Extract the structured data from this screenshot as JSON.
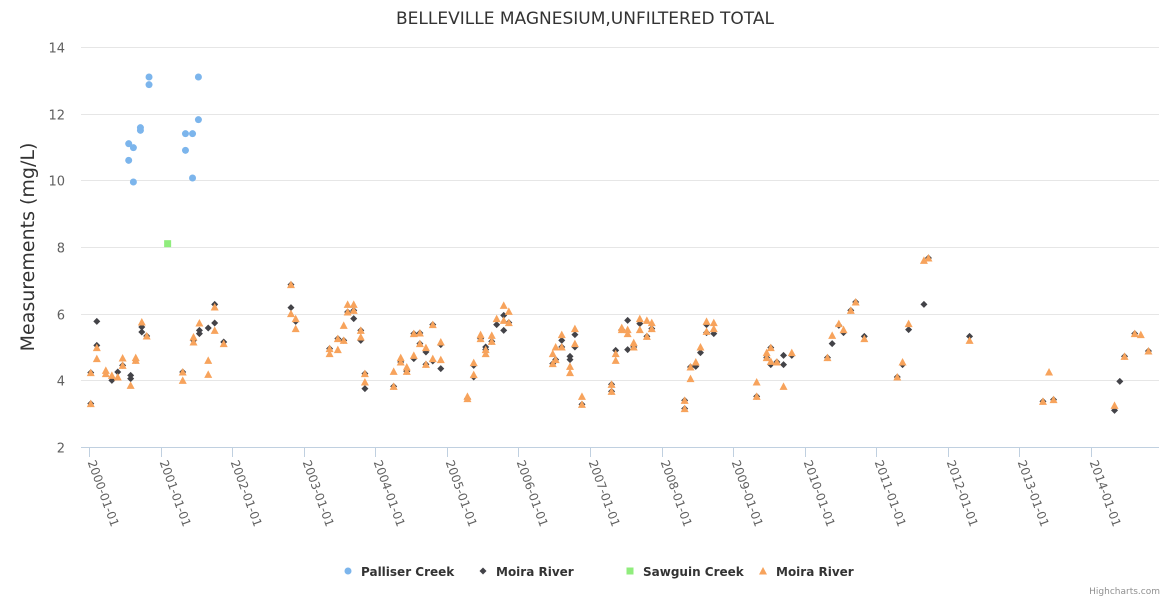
{
  "chart_data": {
    "type": "scatter",
    "title": "BELLEVILLE MAGNESIUM,UNFILTERED TOTAL",
    "xlabel": "",
    "ylabel": "Measurements (mg/L)",
    "ylim": [
      2,
      14
    ],
    "xlim": [
      "1999-11-21",
      "2014-12-13"
    ],
    "y_ticks": [
      "2",
      "4",
      "6",
      "8",
      "10",
      "12",
      "14"
    ],
    "x_ticks": [
      "2000-01-01",
      "2001-01-01",
      "2002-01-01",
      "2003-01-01",
      "2004-01-01",
      "2005-01-01",
      "2006-01-01",
      "2007-01-01",
      "2008-01-01",
      "2009-01-01",
      "2010-01-01",
      "2011-01-01",
      "2012-01-01",
      "2013-01-01",
      "2014-01-01"
    ],
    "grid": true,
    "legend_position": "bottom",
    "credits": "Highcharts.com",
    "series": [
      {
        "name": "Palliser Creek",
        "marker": "circle",
        "color": "#7cb5ec",
        "points": [
          [
            "2000-07-22",
            11.1
          ],
          [
            "2000-07-22",
            10.6
          ],
          [
            "2000-08-15",
            10.98
          ],
          [
            "2000-08-15",
            9.95
          ],
          [
            "2000-09-20",
            11.58
          ],
          [
            "2000-09-20",
            11.5
          ],
          [
            "2000-11-03",
            13.1
          ],
          [
            "2000-11-03",
            12.87
          ],
          [
            "2001-05-08",
            11.4
          ],
          [
            "2001-05-08",
            10.9
          ],
          [
            "2001-06-13",
            11.4
          ],
          [
            "2001-06-13",
            10.07
          ],
          [
            "2001-07-13",
            13.1
          ],
          [
            "2001-07-13",
            11.82
          ]
        ]
      },
      {
        "name": "Moira River",
        "marker": "diamond",
        "color": "#434348",
        "points": [
          [
            "2000-01-10",
            3.3
          ],
          [
            "2000-01-10",
            4.23
          ],
          [
            "2000-02-10",
            5.77
          ],
          [
            "2000-02-10",
            5.05
          ],
          [
            "2000-04-27",
            4.0
          ],
          [
            "2000-05-27",
            4.25
          ],
          [
            "2000-06-21",
            4.45
          ],
          [
            "2000-08-01",
            4.15
          ],
          [
            "2000-08-01",
            4.05
          ],
          [
            "2000-08-27",
            4.6
          ],
          [
            "2000-09-27",
            5.6
          ],
          [
            "2000-09-27",
            5.45
          ],
          [
            "2000-10-22",
            5.33
          ],
          [
            "2001-04-24",
            4.25
          ],
          [
            "2001-06-18",
            5.2
          ],
          [
            "2001-07-18",
            5.5
          ],
          [
            "2001-07-18",
            5.4
          ],
          [
            "2001-09-01",
            5.57
          ],
          [
            "2001-10-04",
            6.28
          ],
          [
            "2001-10-04",
            5.72
          ],
          [
            "2001-11-19",
            5.15
          ],
          [
            "2002-10-28",
            6.87
          ],
          [
            "2002-10-28",
            6.18
          ],
          [
            "2002-11-21",
            5.77
          ],
          [
            "2003-05-13",
            4.95
          ],
          [
            "2003-06-24",
            5.25
          ],
          [
            "2003-07-24",
            5.2
          ],
          [
            "2003-08-13",
            6.05
          ],
          [
            "2003-09-13",
            6.1
          ],
          [
            "2003-09-13",
            5.85
          ],
          [
            "2003-10-19",
            5.5
          ],
          [
            "2003-10-19",
            5.2
          ],
          [
            "2003-11-09",
            4.2
          ],
          [
            "2003-11-09",
            3.75
          ],
          [
            "2004-04-04",
            3.82
          ],
          [
            "2004-05-10",
            4.55
          ],
          [
            "2004-06-10",
            4.27
          ],
          [
            "2004-07-16",
            5.4
          ],
          [
            "2004-07-16",
            4.65
          ],
          [
            "2004-08-16",
            5.42
          ],
          [
            "2004-08-16",
            5.1
          ],
          [
            "2004-09-16",
            4.85
          ],
          [
            "2004-09-16",
            4.48
          ],
          [
            "2004-10-21",
            5.67
          ],
          [
            "2004-10-21",
            4.58
          ],
          [
            "2004-12-01",
            5.07
          ],
          [
            "2004-12-01",
            4.35
          ],
          [
            "2005-04-16",
            3.45
          ],
          [
            "2005-05-18",
            4.45
          ],
          [
            "2005-05-18",
            4.1
          ],
          [
            "2005-06-22",
            5.25
          ],
          [
            "2005-07-18",
            5.0
          ],
          [
            "2005-07-18",
            4.92
          ],
          [
            "2005-08-18",
            5.17
          ],
          [
            "2005-09-12",
            5.67
          ],
          [
            "2005-10-18",
            5.95
          ],
          [
            "2005-10-18",
            5.5
          ],
          [
            "2005-11-13",
            5.73
          ],
          [
            "2006-06-25",
            4.5
          ],
          [
            "2006-07-10",
            4.62
          ],
          [
            "2006-08-10",
            5.2
          ],
          [
            "2006-08-10",
            5.0
          ],
          [
            "2006-09-21",
            4.72
          ],
          [
            "2006-09-21",
            4.62
          ],
          [
            "2006-10-16",
            5.37
          ],
          [
            "2006-10-16",
            5.0
          ],
          [
            "2006-11-21",
            3.28
          ],
          [
            "2007-04-21",
            3.88
          ],
          [
            "2007-04-21",
            3.67
          ],
          [
            "2007-05-12",
            4.9
          ],
          [
            "2007-06-12",
            5.52
          ],
          [
            "2007-07-12",
            5.8
          ],
          [
            "2007-07-12",
            4.92
          ],
          [
            "2007-08-12",
            5.0
          ],
          [
            "2007-09-12",
            5.7
          ],
          [
            "2007-10-18",
            5.32
          ],
          [
            "2007-11-12",
            5.55
          ],
          [
            "2008-04-28",
            3.4
          ],
          [
            "2008-04-28",
            3.15
          ],
          [
            "2008-05-28",
            4.4
          ],
          [
            "2008-06-24",
            4.42
          ],
          [
            "2008-07-18",
            4.83
          ],
          [
            "2008-08-18",
            5.67
          ],
          [
            "2008-08-18",
            5.43
          ],
          [
            "2008-09-24",
            5.4
          ],
          [
            "2009-05-01",
            3.52
          ],
          [
            "2009-06-21",
            4.68
          ],
          [
            "2009-07-12",
            4.98
          ],
          [
            "2009-07-12",
            4.47
          ],
          [
            "2009-08-12",
            4.55
          ],
          [
            "2009-09-15",
            4.75
          ],
          [
            "2009-09-15",
            4.47
          ],
          [
            "2009-10-27",
            4.75
          ],
          [
            "2010-04-27",
            4.68
          ],
          [
            "2010-05-21",
            5.1
          ],
          [
            "2010-06-24",
            5.65
          ],
          [
            "2010-07-18",
            5.43
          ],
          [
            "2010-08-24",
            6.1
          ],
          [
            "2010-09-18",
            6.35
          ],
          [
            "2010-11-01",
            5.32
          ],
          [
            "2011-04-18",
            4.1
          ],
          [
            "2011-05-15",
            4.47
          ],
          [
            "2011-06-15",
            5.52
          ],
          [
            "2011-09-01",
            6.28
          ],
          [
            "2011-09-24",
            7.67
          ],
          [
            "2012-04-21",
            5.32
          ],
          [
            "2013-05-01",
            3.37
          ],
          [
            "2013-06-24",
            3.42
          ],
          [
            "2014-05-01",
            3.1
          ],
          [
            "2014-05-28",
            3.97
          ],
          [
            "2014-06-21",
            4.72
          ],
          [
            "2014-08-12",
            5.4
          ],
          [
            "2014-10-21",
            4.88
          ]
        ]
      },
      {
        "name": "Sawguin Creek",
        "marker": "square",
        "color": "#90ed7d",
        "points": [
          [
            "2001-02-06",
            8.1
          ]
        ]
      },
      {
        "name": "Moira River",
        "marker": "triangle",
        "color": "#f7a35c",
        "points": [
          [
            "2000-01-10",
            3.3
          ],
          [
            "2000-01-10",
            4.23
          ],
          [
            "2000-02-10",
            4.98
          ],
          [
            "2000-02-10",
            4.65
          ],
          [
            "2000-03-27",
            4.3
          ],
          [
            "2000-03-27",
            4.2
          ],
          [
            "2000-04-27",
            4.15
          ],
          [
            "2000-05-27",
            4.1
          ],
          [
            "2000-06-21",
            4.67
          ],
          [
            "2000-06-21",
            4.45
          ],
          [
            "2000-08-01",
            3.85
          ],
          [
            "2000-08-27",
            4.68
          ],
          [
            "2000-08-27",
            4.6
          ],
          [
            "2000-09-27",
            5.75
          ],
          [
            "2000-10-22",
            5.33
          ],
          [
            "2001-04-24",
            4.25
          ],
          [
            "2001-04-24",
            4.0
          ],
          [
            "2001-06-18",
            5.3
          ],
          [
            "2001-06-18",
            5.15
          ],
          [
            "2001-07-18",
            5.72
          ],
          [
            "2001-09-01",
            4.6
          ],
          [
            "2001-09-01",
            4.18
          ],
          [
            "2001-10-04",
            6.2
          ],
          [
            "2001-10-04",
            5.5
          ],
          [
            "2001-11-19",
            5.1
          ],
          [
            "2002-10-28",
            6.87
          ],
          [
            "2002-10-28",
            6.0
          ],
          [
            "2002-11-21",
            5.85
          ],
          [
            "2002-11-21",
            5.55
          ],
          [
            "2003-05-13",
            4.95
          ],
          [
            "2003-05-13",
            4.8
          ],
          [
            "2003-06-24",
            5.25
          ],
          [
            "2003-06-24",
            4.92
          ],
          [
            "2003-07-24",
            5.65
          ],
          [
            "2003-07-24",
            5.2
          ],
          [
            "2003-08-13",
            6.28
          ],
          [
            "2003-08-13",
            6.05
          ],
          [
            "2003-09-13",
            6.28
          ],
          [
            "2003-09-13",
            6.1
          ],
          [
            "2003-10-19",
            5.5
          ],
          [
            "2003-10-19",
            5.3
          ],
          [
            "2003-11-09",
            4.2
          ],
          [
            "2003-11-09",
            3.95
          ],
          [
            "2004-04-04",
            4.27
          ],
          [
            "2004-04-04",
            3.82
          ],
          [
            "2004-05-10",
            4.68
          ],
          [
            "2004-05-10",
            4.55
          ],
          [
            "2004-06-10",
            4.4
          ],
          [
            "2004-06-10",
            4.27
          ],
          [
            "2004-07-16",
            5.4
          ],
          [
            "2004-07-16",
            4.75
          ],
          [
            "2004-08-16",
            5.42
          ],
          [
            "2004-08-16",
            5.1
          ],
          [
            "2004-09-16",
            4.98
          ],
          [
            "2004-09-16",
            4.48
          ],
          [
            "2004-10-21",
            5.67
          ],
          [
            "2004-10-21",
            4.65
          ],
          [
            "2004-12-01",
            5.15
          ],
          [
            "2004-12-01",
            4.62
          ],
          [
            "2005-04-16",
            3.52
          ],
          [
            "2005-04-16",
            3.45
          ],
          [
            "2005-05-18",
            4.53
          ],
          [
            "2005-05-18",
            4.17
          ],
          [
            "2005-06-22",
            5.37
          ],
          [
            "2005-06-22",
            5.25
          ],
          [
            "2005-07-18",
            4.92
          ],
          [
            "2005-07-18",
            4.8
          ],
          [
            "2005-08-18",
            5.35
          ],
          [
            "2005-08-18",
            5.17
          ],
          [
            "2005-09-12",
            5.85
          ],
          [
            "2005-10-18",
            6.25
          ],
          [
            "2005-10-18",
            5.8
          ],
          [
            "2005-11-13",
            6.07
          ],
          [
            "2005-11-13",
            5.73
          ],
          [
            "2006-06-25",
            4.8
          ],
          [
            "2006-06-25",
            4.5
          ],
          [
            "2006-07-10",
            5.0
          ],
          [
            "2006-07-10",
            4.62
          ],
          [
            "2006-08-10",
            5.37
          ],
          [
            "2006-08-10",
            5.0
          ],
          [
            "2006-09-21",
            4.42
          ],
          [
            "2006-09-21",
            4.23
          ],
          [
            "2006-10-16",
            5.55
          ],
          [
            "2006-10-16",
            5.1
          ],
          [
            "2006-11-21",
            3.52
          ],
          [
            "2006-11-21",
            3.28
          ],
          [
            "2007-04-21",
            3.88
          ],
          [
            "2007-04-21",
            3.67
          ],
          [
            "2007-05-12",
            4.8
          ],
          [
            "2007-05-12",
            4.6
          ],
          [
            "2007-06-12",
            5.58
          ],
          [
            "2007-06-12",
            5.52
          ],
          [
            "2007-07-12",
            5.52
          ],
          [
            "2007-07-12",
            5.4
          ],
          [
            "2007-08-12",
            5.13
          ],
          [
            "2007-08-12",
            5.0
          ],
          [
            "2007-09-12",
            5.85
          ],
          [
            "2007-09-12",
            5.52
          ],
          [
            "2007-10-18",
            5.8
          ],
          [
            "2007-10-18",
            5.32
          ],
          [
            "2007-11-12",
            5.73
          ],
          [
            "2007-11-12",
            5.55
          ],
          [
            "2008-04-28",
            3.4
          ],
          [
            "2008-04-28",
            3.15
          ],
          [
            "2008-05-28",
            4.4
          ],
          [
            "2008-05-28",
            4.05
          ],
          [
            "2008-06-24",
            4.55
          ],
          [
            "2008-07-18",
            5.0
          ],
          [
            "2008-08-18",
            5.77
          ],
          [
            "2008-08-18",
            5.47
          ],
          [
            "2008-09-24",
            5.73
          ],
          [
            "2008-09-24",
            5.55
          ],
          [
            "2009-05-01",
            3.95
          ],
          [
            "2009-05-01",
            3.52
          ],
          [
            "2009-06-21",
            4.83
          ],
          [
            "2009-06-21",
            4.68
          ],
          [
            "2009-07-12",
            4.98
          ],
          [
            "2009-07-12",
            4.57
          ],
          [
            "2009-08-12",
            4.55
          ],
          [
            "2009-09-15",
            3.82
          ],
          [
            "2009-10-27",
            4.83
          ],
          [
            "2010-04-27",
            4.68
          ],
          [
            "2010-05-21",
            5.35
          ],
          [
            "2010-06-24",
            5.7
          ],
          [
            "2010-07-18",
            5.52
          ],
          [
            "2010-08-24",
            6.1
          ],
          [
            "2010-09-18",
            6.35
          ],
          [
            "2010-11-01",
            5.25
          ],
          [
            "2011-04-18",
            4.1
          ],
          [
            "2011-05-15",
            4.55
          ],
          [
            "2011-06-15",
            5.7
          ],
          [
            "2011-09-01",
            7.6
          ],
          [
            "2011-09-24",
            7.67
          ],
          [
            "2012-04-21",
            5.2
          ],
          [
            "2013-05-01",
            3.37
          ],
          [
            "2013-06-01",
            4.25
          ],
          [
            "2013-06-24",
            3.42
          ],
          [
            "2014-05-01",
            3.25
          ],
          [
            "2014-06-21",
            4.72
          ],
          [
            "2014-08-12",
            5.4
          ],
          [
            "2014-09-12",
            5.37
          ],
          [
            "2014-10-21",
            4.88
          ]
        ]
      }
    ]
  }
}
